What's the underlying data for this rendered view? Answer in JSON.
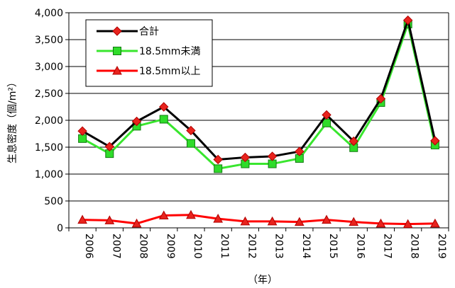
{
  "chart_data": {
    "type": "line",
    "title": "",
    "xlabel": "（年）",
    "ylabel": "生息密度（個/m²）",
    "categories": [
      "2006",
      "2007",
      "2008",
      "2009",
      "2010",
      "2011",
      "2012",
      "2013",
      "2014",
      "2015",
      "2016",
      "2017",
      "2018",
      "2019"
    ],
    "ylim": [
      0,
      4000
    ],
    "yticks": [
      0,
      500,
      1000,
      1500,
      2000,
      2500,
      3000,
      3500,
      4000
    ],
    "ytick_labels": [
      "0",
      "500",
      "1,000",
      "1,500",
      "2,000",
      "2,500",
      "3,000",
      "3,500",
      "4,000"
    ],
    "grid": "horizontal",
    "legend_position": "top-left",
    "series": [
      {
        "name": "合計",
        "color": "#000000",
        "marker": "diamond",
        "marker_color": "#e8231d",
        "values": [
          1800,
          1510,
          1980,
          2250,
          1810,
          1270,
          1310,
          1330,
          1420,
          2100,
          1610,
          2400,
          3860,
          1620
        ]
      },
      {
        "name": "18.5mm未満",
        "color": "#39e62e",
        "marker": "square",
        "marker_color": "#2fdc2a",
        "values": [
          1660,
          1380,
          1890,
          2020,
          1570,
          1100,
          1190,
          1190,
          1290,
          1950,
          1490,
          2330,
          3790,
          1540
        ]
      },
      {
        "name": "18.5mm以上",
        "color": "#ff0000",
        "marker": "triangle",
        "marker_color": "#e8231d",
        "values": [
          150,
          140,
          80,
          230,
          240,
          170,
          120,
          120,
          110,
          150,
          110,
          80,
          70,
          80
        ]
      }
    ]
  }
}
